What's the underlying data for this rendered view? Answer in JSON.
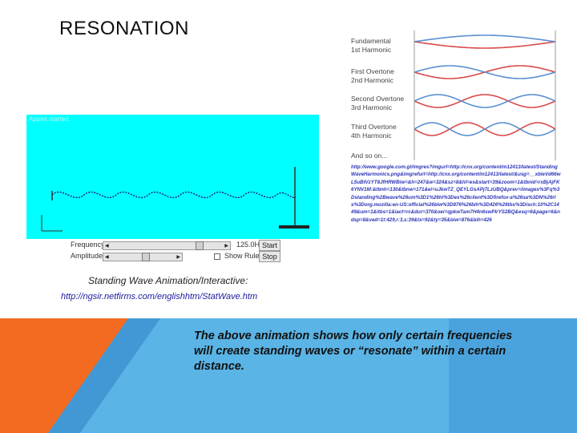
{
  "slide": {
    "title": "RESONATION",
    "body_text": "The above animation shows how only certain frequencies will create  standing  waves or “resonate” within a certain distance."
  },
  "applet": {
    "caption": "Applet started.",
    "frequency_label": "Frequency",
    "frequency_value": "125.0Hz",
    "amplitude_label": "Amplitude",
    "start_label": "Start",
    "stop_label": "Stop",
    "show_ruler_label": "Show Ruler",
    "frequency_slider": 0.82,
    "amplitude_slider": 0.55,
    "caption_below": "Standing Wave Animation/Interactive:",
    "link": "http://ngsir.netfirms.com/englishhtm/StatWave.htm"
  },
  "harmonics": {
    "labels": [
      {
        "line1": "Fundamental",
        "line2": "1st Harmonic"
      },
      {
        "line1": "First Overtone",
        "line2": "2nd Harmonic"
      },
      {
        "line1": "Second Overtone",
        "line2": "3rd Harmonic"
      },
      {
        "line1": "Third Overtone",
        "line2": "4th Harmonic"
      },
      {
        "line1": "And so on...",
        "line2": ""
      }
    ],
    "url": "http://www.google.com.gt/imgres?imgurl=http://cnx.org/content/m12413/latest/StandingWaveHarmonics.png&imgrefurl=http://cnx.org/content/m12413/latest/&usg=__xbleVd66wL5uBtVzYT8JfHRWBiw=&h=247&w=324&sz=8&hl=es&start=39&zoom=1&tbnid=rxBjAjFK6YNV1M:&tbnh=130&tbnw=171&ei=uJkwTZ_QEYLGsAPj7LzUBQ&prev=/images%3Fq%3Dstanding%2Bwave%26um%3D1%26hl%3Des%26client%3Dfirefox-a%26sa%3DN%26rls%3Dorg.mozilla:en-US:official%26biw%3D876%26bih%3D426%26tbs%3Disch:10%2C1449&um=1&itbs=1&iact=rc&dur=370&oei=qpkwTam7H4n6swPlrYS2BQ&esq=6&page=6&ndsp=8&ved=1t:429,r:3,s:39&tx=92&ty=35&biw=876&bih=426"
  },
  "colors": {
    "applet_bg": "#00ffff",
    "wave_blue": "#5a8fd0",
    "wave_red": "#d94a4a",
    "orange": "#f26b21",
    "light_blue": "#5ab4e6",
    "dark_blue": "#2e82c4"
  }
}
